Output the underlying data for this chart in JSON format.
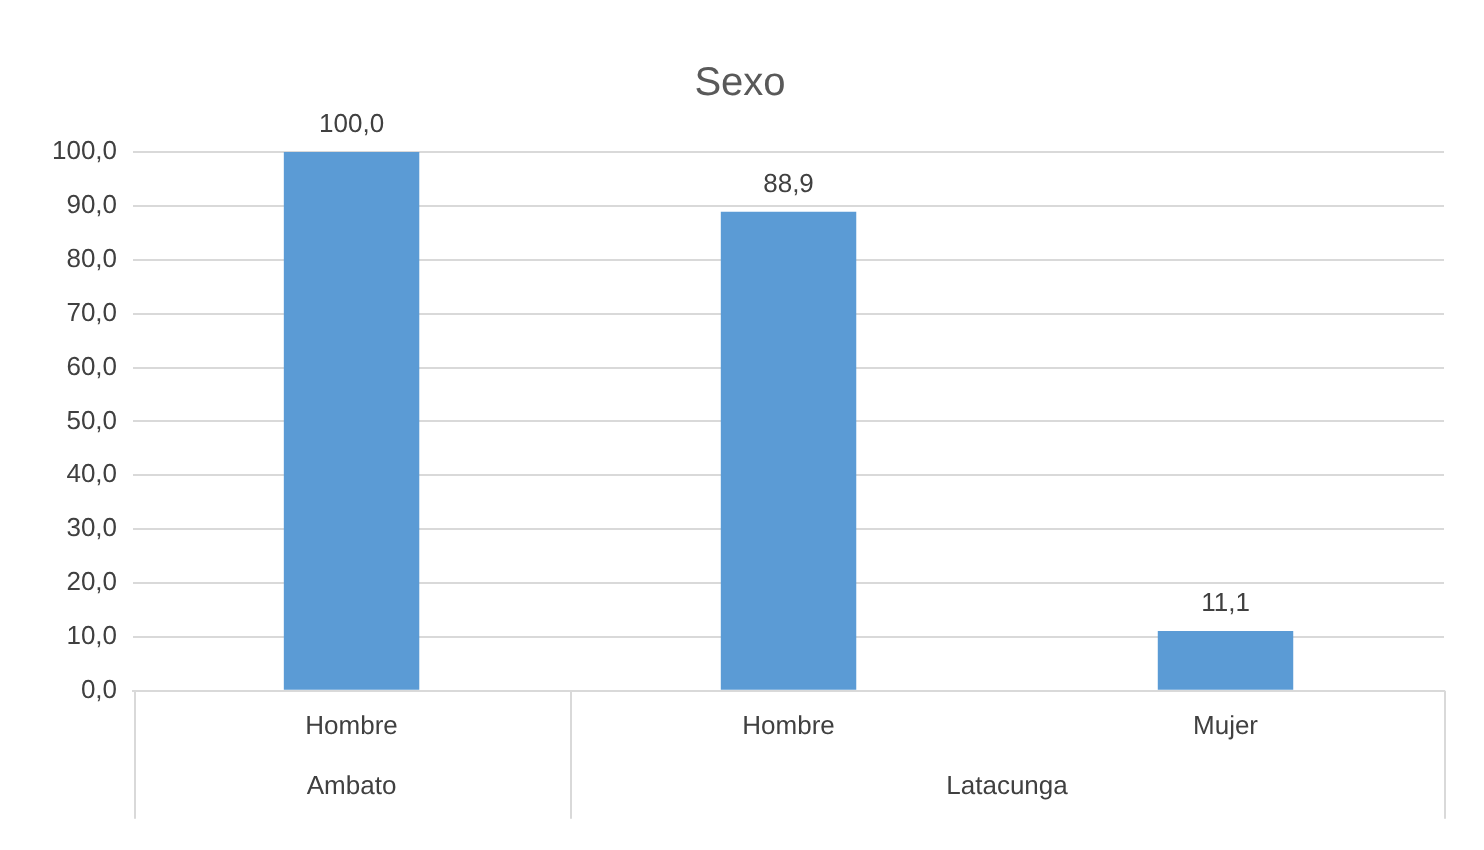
{
  "chart_data": {
    "type": "bar",
    "title": "Sexo",
    "categories": [
      "Hombre",
      "Hombre",
      "Mujer"
    ],
    "values": [
      100.0,
      88.9,
      11.1
    ],
    "value_labels": [
      "100,0",
      "88,9",
      "11,1"
    ],
    "color": "#5b9bd5",
    "ylim": [
      0,
      100
    ],
    "yticks": [
      {
        "value": 0,
        "label": "0,0"
      },
      {
        "value": 10,
        "label": "10,0"
      },
      {
        "value": 20,
        "label": "20,0"
      },
      {
        "value": 30,
        "label": "30,0"
      },
      {
        "value": 40,
        "label": "40,0"
      },
      {
        "value": 50,
        "label": "50,0"
      },
      {
        "value": 60,
        "label": "60,0"
      },
      {
        "value": 70,
        "label": "70,0"
      },
      {
        "value": 80,
        "label": "80,0"
      },
      {
        "value": 90,
        "label": "90,0"
      },
      {
        "value": 100,
        "label": "100,0"
      }
    ],
    "annotations": [
      "Ambato",
      "Latacunga"
    ],
    "grid": "y",
    "legend": false
  }
}
